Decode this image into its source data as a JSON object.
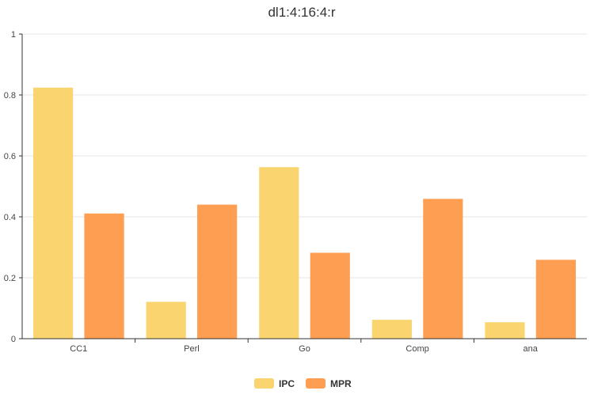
{
  "chart_data": {
    "type": "bar",
    "title": "dl1:4:16:4:r",
    "categories": [
      "CC1",
      "Perl",
      "Go",
      "Comp",
      "ana"
    ],
    "series": [
      {
        "name": "IPC",
        "color": "#fad46f",
        "values": [
          0.824,
          0.121,
          0.563,
          0.062,
          0.054
        ]
      },
      {
        "name": "MPR",
        "color": "#fd9e52",
        "values": [
          0.411,
          0.44,
          0.282,
          0.459,
          0.259
        ]
      }
    ],
    "ylim": [
      0,
      1
    ],
    "yticks": [
      0,
      0.2,
      0.4,
      0.6,
      0.8,
      1
    ],
    "ytick_labels": [
      "0",
      "0.2",
      "0.4",
      "0.6",
      "0.8",
      "1"
    ],
    "grid": true,
    "legend_position": "bottom-center"
  }
}
